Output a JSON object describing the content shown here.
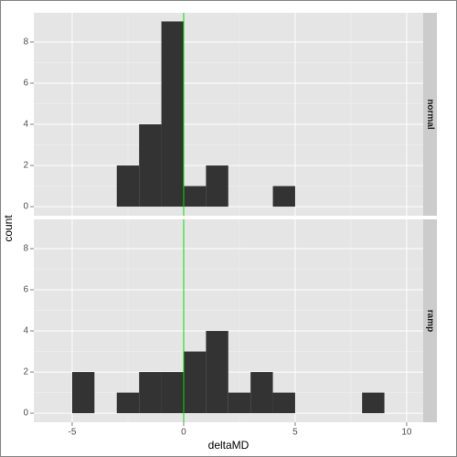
{
  "chart_data": {
    "type": "histogram",
    "x_label": "deltaMD",
    "y_label": "count",
    "bins": [
      -5,
      -4,
      -3,
      -2,
      -1,
      0,
      1,
      2,
      3,
      4,
      5,
      6,
      7,
      8,
      9
    ],
    "series": [
      {
        "name": "normal",
        "color": "#333333",
        "values": [
          0,
          0,
          2,
          4,
          9,
          1,
          2,
          0,
          0,
          1,
          0,
          0,
          0,
          0
        ]
      },
      {
        "name": "ramp",
        "color": "#333333",
        "values": [
          2,
          0,
          1,
          2,
          2,
          3,
          4,
          1,
          2,
          1,
          0,
          0,
          0,
          1
        ]
      }
    ],
    "xlim": [
      -6.72,
      10.74
    ],
    "xticks": [
      -5,
      0,
      5,
      10
    ],
    "ylim": [
      -0.44,
      9.42
    ],
    "yticks": [
      0,
      2,
      4,
      6,
      8
    ],
    "vline": 0,
    "vline_color": "#00dd00",
    "grid": true
  }
}
